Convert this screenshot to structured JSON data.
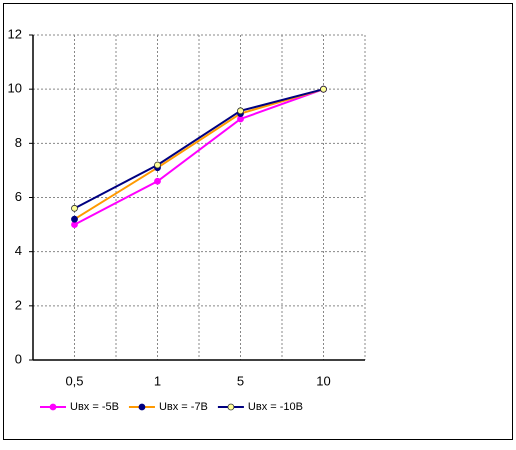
{
  "chart_data": {
    "type": "line",
    "categories": [
      "0,5",
      "1",
      "5",
      "10"
    ],
    "series": [
      {
        "name": "Uвх = -5В",
        "color": "#ff00ff",
        "marker_color": "#ff00ff",
        "values": [
          5.0,
          6.6,
          8.9,
          10.0
        ]
      },
      {
        "name": "Uвх = -7В",
        "color": "#ff9900",
        "marker_color": "#000080",
        "values": [
          5.2,
          7.1,
          9.1,
          10.0
        ]
      },
      {
        "name": "Uвх = -10В",
        "color": "#000080",
        "marker_color": "#ffff99",
        "values": [
          5.6,
          7.2,
          9.2,
          10.0
        ]
      }
    ],
    "ylim": [
      0,
      12
    ],
    "yticks": [
      0,
      2,
      4,
      6,
      8,
      10,
      12
    ],
    "grid": true,
    "legend": "bottom"
  }
}
